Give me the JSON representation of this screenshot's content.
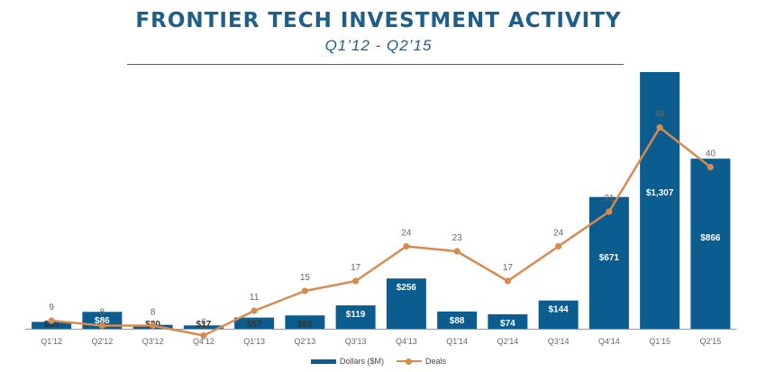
{
  "header": {
    "title": "FRONTIER TECH INVESTMENT ACTIVITY",
    "subtitle": "Q1’12 - Q2’15"
  },
  "colors": {
    "bar": "#0b5d8f",
    "line": "#d98a4e",
    "axis": "#999999",
    "label": "#666666"
  },
  "chart_data": {
    "type": "bar",
    "categories": [
      "Q1'12",
      "Q2'12",
      "Q3'12",
      "Q4'12",
      "Q1'13",
      "Q2'13",
      "Q3'13",
      "Q4'13",
      "Q1'14",
      "Q2'14",
      "Q3'14",
      "Q4'14",
      "Q1'15",
      "Q2'15"
    ],
    "series": [
      {
        "name": "Dollars ($M)",
        "type": "bar",
        "values": [
          35,
          86,
          20,
          17,
          57,
          68,
          119,
          256,
          88,
          74,
          144,
          671,
          1307,
          866
        ],
        "labels": [
          "$35",
          "$86",
          "$20",
          "$17",
          "$57",
          "$68",
          "$119",
          "$256",
          "$88",
          "$74",
          "$144",
          "$671",
          "$1,307",
          "$866"
        ]
      },
      {
        "name": "Deals",
        "type": "line",
        "values": [
          9,
          8,
          8,
          6,
          11,
          15,
          17,
          24,
          23,
          17,
          24,
          31,
          48,
          40
        ]
      }
    ],
    "title": "FRONTIER TECH INVESTMENT ACTIVITY",
    "subtitle": "Q1’12 - Q2’15",
    "legend": "bottom"
  }
}
